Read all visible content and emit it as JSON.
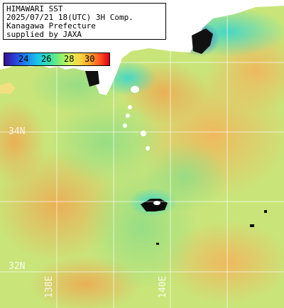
{
  "title": {
    "line1": "HIMAWARI SST",
    "line2": "2025/07/21 18(UTC) 3H Comp.",
    "line3": "Kanagawa Prefecture",
    "line4": "supplied by JAXA"
  },
  "colorbar": {
    "ticks": [
      "24",
      "26",
      "28",
      "30"
    ],
    "colors": [
      "#3a0f8c",
      "#2a3fd8",
      "#1d7ff0",
      "#19c6e6",
      "#3fe0a6",
      "#8ff06a",
      "#d9f05a",
      "#ffd23f",
      "#ff9a2e",
      "#ff4a1e",
      "#d8001a"
    ]
  },
  "grid_labels": {
    "lat_34": "34N",
    "lat_32": "32N",
    "lon_138": "138E",
    "lon_140": "140E"
  }
}
